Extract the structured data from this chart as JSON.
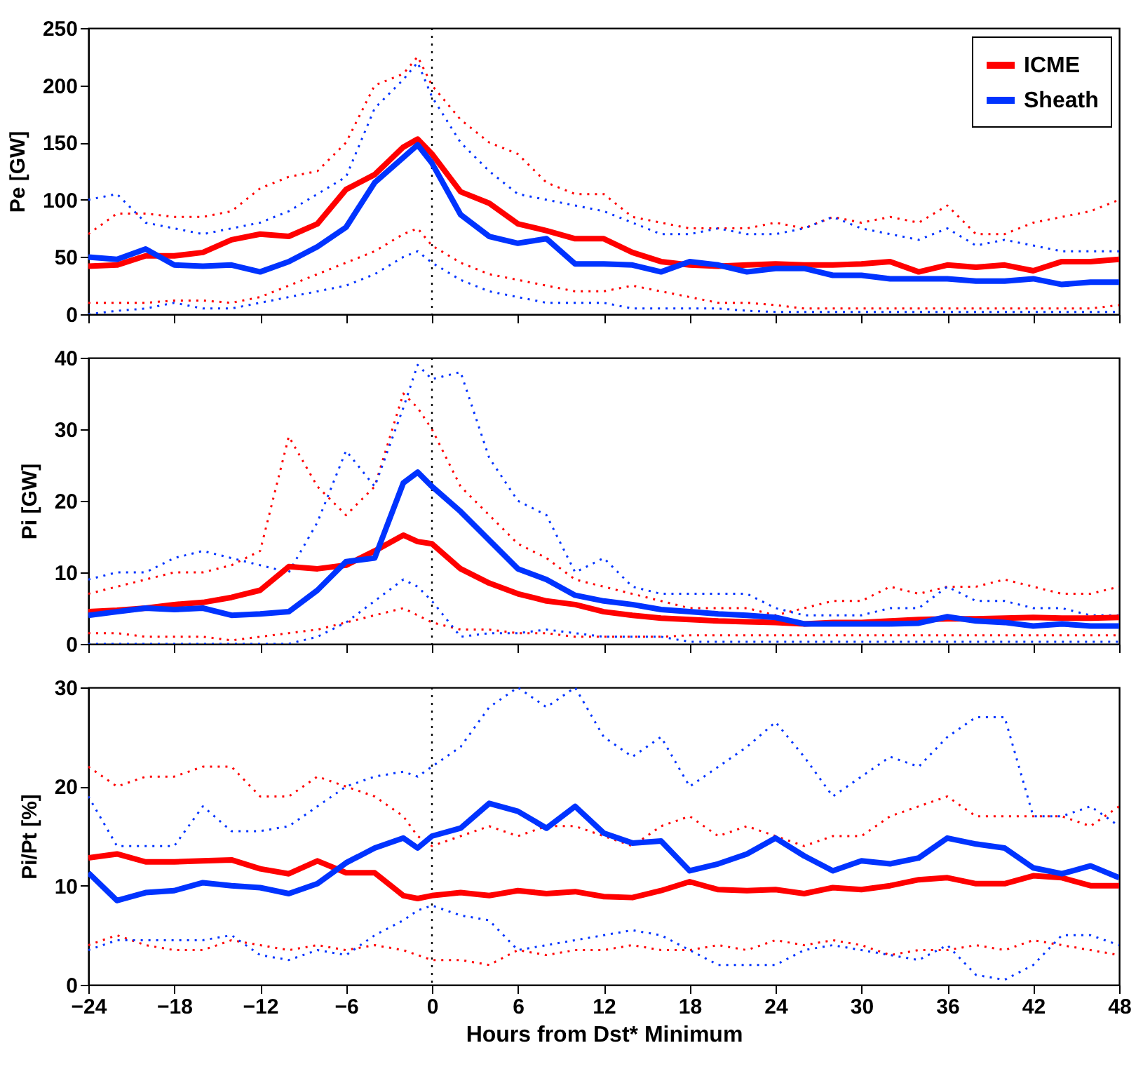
{
  "chart_data": [
    {
      "type": "line",
      "ylabel": "Pe [GW]",
      "x": [
        -24,
        -22,
        -20,
        -18,
        -16,
        -14,
        -12,
        -10,
        -8,
        -6,
        -4,
        -2,
        -1,
        0,
        2,
        4,
        6,
        8,
        10,
        12,
        14,
        16,
        18,
        20,
        22,
        24,
        26,
        28,
        30,
        32,
        34,
        36,
        38,
        40,
        42,
        44,
        46,
        48
      ],
      "xlim": [
        -24,
        48
      ],
      "xticks": [
        -24,
        -18,
        -12,
        -6,
        0,
        6,
        12,
        18,
        24,
        30,
        36,
        42,
        48
      ],
      "ylim": [
        0,
        250
      ],
      "yticks": [
        0,
        50,
        100,
        150,
        200,
        250
      ],
      "tick_labels": "y",
      "grid": false,
      "legend": "top right",
      "ref_lines": [
        {
          "axis": "x",
          "value": 0,
          "color": "#000000",
          "line_style": "dotted"
        }
      ],
      "series": [
        {
          "color": "#ff0000",
          "line_style": "dotted",
          "values": [
            70,
            88,
            88,
            85,
            85,
            90,
            110,
            120,
            125,
            150,
            200,
            210,
            225,
            200,
            170,
            150,
            140,
            115,
            105,
            105,
            85,
            80,
            75,
            75,
            75,
            80,
            75,
            85,
            80,
            85,
            80,
            95,
            70,
            70,
            80,
            85,
            90,
            100
          ]
        },
        {
          "color": "#ff0000",
          "line_style": "dotted",
          "values": [
            10,
            10,
            10,
            12,
            12,
            10,
            15,
            25,
            35,
            45,
            55,
            70,
            75,
            60,
            45,
            35,
            30,
            25,
            20,
            20,
            25,
            20,
            15,
            10,
            10,
            8,
            5,
            5,
            5,
            5,
            5,
            5,
            5,
            5,
            5,
            5,
            5,
            8
          ]
        },
        {
          "color": "#0033ff",
          "line_style": "dotted",
          "values": [
            100,
            105,
            80,
            75,
            70,
            75,
            80,
            90,
            105,
            120,
            180,
            205,
            220,
            190,
            150,
            125,
            105,
            100,
            95,
            90,
            80,
            70,
            70,
            75,
            70,
            70,
            75,
            85,
            75,
            70,
            65,
            75,
            60,
            65,
            60,
            55,
            55,
            55
          ]
        },
        {
          "color": "#0033ff",
          "line_style": "dotted",
          "values": [
            0,
            3,
            5,
            10,
            5,
            5,
            10,
            15,
            20,
            25,
            35,
            50,
            55,
            45,
            30,
            20,
            15,
            10,
            10,
            10,
            5,
            5,
            5,
            5,
            3,
            2,
            2,
            2,
            2,
            2,
            2,
            2,
            2,
            2,
            2,
            2,
            2,
            2
          ]
        },
        {
          "name": "ICME",
          "color": "#ff0000",
          "line_style": "solid",
          "values": [
            42,
            43,
            51,
            51,
            54,
            65,
            70,
            68,
            79,
            109,
            122,
            146,
            153,
            140,
            107,
            97,
            79,
            73,
            66,
            66,
            54,
            46,
            43,
            42,
            43,
            44,
            43,
            43,
            44,
            46,
            37,
            43,
            41,
            43,
            38,
            46,
            46,
            48
          ]
        },
        {
          "name": "Sheath",
          "color": "#0033ff",
          "line_style": "solid",
          "values": [
            50,
            48,
            57,
            43,
            42,
            43,
            37,
            46,
            59,
            76,
            115,
            137,
            148,
            132,
            87,
            68,
            62,
            66,
            44,
            44,
            43,
            37,
            46,
            43,
            37,
            40,
            40,
            34,
            34,
            31,
            31,
            31,
            29,
            29,
            31,
            26,
            28,
            28
          ]
        }
      ]
    },
    {
      "type": "line",
      "ylabel": "Pi [GW]",
      "x": [
        -24,
        -22,
        -20,
        -18,
        -16,
        -14,
        -12,
        -10,
        -8,
        -6,
        -4,
        -2,
        -1,
        0,
        2,
        4,
        6,
        8,
        10,
        12,
        14,
        16,
        18,
        20,
        22,
        24,
        26,
        28,
        30,
        32,
        34,
        36,
        38,
        40,
        42,
        44,
        46,
        48
      ],
      "xlim": [
        -24,
        48
      ],
      "xticks": [
        -24,
        -18,
        -12,
        -6,
        0,
        6,
        12,
        18,
        24,
        30,
        36,
        42,
        48
      ],
      "ylim": [
        0,
        40
      ],
      "yticks": [
        0,
        10,
        20,
        30,
        40
      ],
      "tick_labels": "y",
      "grid": false,
      "ref_lines": [
        {
          "axis": "x",
          "value": 0,
          "color": "#000000",
          "line_style": "dotted"
        }
      ],
      "series": [
        {
          "color": "#ff0000",
          "line_style": "dotted",
          "values": [
            7,
            8,
            9,
            10,
            10,
            11,
            13,
            29,
            22,
            18,
            22,
            35,
            33,
            30,
            22,
            18,
            14,
            12,
            9,
            8,
            7,
            6,
            5,
            5,
            5,
            4,
            5,
            6,
            6,
            8,
            7,
            8,
            8,
            9,
            8,
            7,
            7,
            8
          ]
        },
        {
          "color": "#ff0000",
          "line_style": "dotted",
          "values": [
            1.5,
            1.5,
            1,
            1,
            1,
            0.5,
            1,
            1.5,
            2,
            3,
            4,
            5,
            4,
            3,
            2,
            2,
            1.5,
            1.5,
            1,
            1,
            1,
            1,
            1.2,
            1.2,
            1.2,
            1.2,
            1.2,
            1.2,
            1.2,
            1.2,
            1.2,
            1.2,
            1.2,
            1.2,
            1.2,
            1.2,
            1.2,
            1.2
          ]
        },
        {
          "color": "#0033ff",
          "line_style": "dotted",
          "values": [
            9,
            10,
            10,
            12,
            13,
            12,
            11,
            10,
            17,
            27,
            22,
            33,
            39,
            37,
            38,
            26,
            20,
            18,
            10,
            12,
            8,
            7,
            7,
            7,
            7,
            5,
            4,
            4,
            4,
            5,
            5,
            8,
            6,
            6,
            5,
            5,
            4,
            4
          ]
        },
        {
          "color": "#0033ff",
          "line_style": "dotted",
          "values": [
            0,
            0,
            0,
            0,
            0,
            0,
            0,
            0,
            1,
            3,
            6,
            9,
            8,
            6,
            1,
            1.5,
            1.5,
            2,
            1.5,
            1,
            1,
            1,
            0.3,
            0.3,
            0.3,
            0.3,
            0.3,
            0.3,
            0.3,
            0.3,
            0.3,
            0.3,
            0.3,
            0.3,
            0.3,
            0.3,
            0.3,
            0.3
          ]
        },
        {
          "color": "#ff0000",
          "line_style": "solid",
          "values": [
            4.5,
            4.7,
            5,
            5.5,
            5.8,
            6.5,
            7.5,
            10.8,
            10.5,
            11,
            13,
            15.2,
            14.3,
            14,
            10.5,
            8.5,
            7,
            6,
            5.5,
            4.5,
            4,
            3.6,
            3.4,
            3.2,
            3.1,
            3.0,
            2.8,
            3,
            3,
            3.2,
            3.4,
            3.5,
            3.5,
            3.6,
            3.7,
            3.6,
            3.6,
            3.7
          ]
        },
        {
          "color": "#0033ff",
          "line_style": "solid",
          "values": [
            4,
            4.5,
            5,
            4.8,
            5,
            4,
            4.2,
            4.5,
            7.5,
            11.5,
            12,
            22.5,
            24,
            22,
            18.5,
            14.5,
            10.5,
            9,
            6.8,
            6,
            5.5,
            4.8,
            4.5,
            4.2,
            4,
            3.7,
            2.8,
            2.8,
            2.8,
            2.8,
            2.9,
            3.8,
            3.2,
            3,
            2.5,
            2.8,
            2.5,
            2.5
          ]
        }
      ]
    },
    {
      "type": "line",
      "ylabel": "Pi/Pt [%]",
      "xlabel": "Hours from Dst* Minimum",
      "x": [
        -24,
        -22,
        -20,
        -18,
        -16,
        -14,
        -12,
        -10,
        -8,
        -6,
        -4,
        -2,
        -1,
        0,
        2,
        4,
        6,
        8,
        10,
        12,
        14,
        16,
        18,
        20,
        22,
        24,
        26,
        28,
        30,
        32,
        34,
        36,
        38,
        40,
        42,
        44,
        46,
        48
      ],
      "xlim": [
        -24,
        48
      ],
      "xticks": [
        {
          "value": -24,
          "label": "−24"
        },
        {
          "value": -18,
          "label": "−18"
        },
        {
          "value": -12,
          "label": "−12"
        },
        {
          "value": -6,
          "label": "−6"
        },
        0,
        6,
        12,
        18,
        24,
        30,
        36,
        42,
        48
      ],
      "ylim": [
        0,
        30
      ],
      "yticks": [
        0,
        10,
        20,
        30
      ],
      "grid": false,
      "ref_lines": [
        {
          "axis": "x",
          "value": 0,
          "color": "#000000",
          "line_style": "dotted"
        }
      ],
      "series": [
        {
          "color": "#ff0000",
          "line_style": "dotted",
          "values": [
            22,
            20,
            21,
            21,
            22,
            22,
            19,
            19,
            21,
            20,
            19,
            17,
            15,
            14,
            15,
            16,
            15,
            16,
            16,
            15,
            14,
            16,
            17,
            15,
            16,
            15,
            14,
            15,
            15,
            17,
            18,
            19,
            17,
            17,
            17,
            17,
            16,
            18
          ]
        },
        {
          "color": "#ff0000",
          "line_style": "dotted",
          "values": [
            4,
            5,
            4,
            3.5,
            3.5,
            4.5,
            4,
            3.5,
            4,
            3.5,
            4,
            3.5,
            3,
            2.5,
            2.5,
            2,
            3.5,
            3,
            3.5,
            3.5,
            4,
            3.5,
            3.5,
            4,
            3.5,
            4.5,
            4,
            4.5,
            4,
            3,
            3.5,
            3.5,
            4,
            3.5,
            4.5,
            4,
            3.5,
            3
          ]
        },
        {
          "color": "#0033ff",
          "line_style": "dotted",
          "values": [
            19,
            14,
            14,
            14,
            18,
            15.5,
            15.5,
            16,
            18,
            20,
            21,
            21.5,
            21,
            22,
            24,
            28,
            30,
            28,
            30,
            25,
            23,
            25,
            20,
            22,
            24,
            26.5,
            23,
            19,
            21,
            23,
            22,
            25,
            27,
            27,
            17,
            17,
            18,
            16
          ]
        },
        {
          "color": "#0033ff",
          "line_style": "dotted",
          "values": [
            3.5,
            4.5,
            4.5,
            4.5,
            4.5,
            5,
            3,
            2.5,
            3.5,
            3,
            5,
            6.5,
            7.5,
            8,
            7,
            6.5,
            3.5,
            4,
            4.5,
            5,
            5.5,
            5,
            3.5,
            2,
            2,
            2,
            3.5,
            4,
            3.5,
            3,
            2.5,
            4,
            1,
            0.5,
            2,
            5,
            5,
            4
          ]
        },
        {
          "color": "#ff0000",
          "line_style": "solid",
          "values": [
            12.8,
            13.2,
            12.4,
            12.4,
            12.5,
            12.6,
            11.7,
            11.2,
            12.5,
            11.3,
            11.3,
            9,
            8.7,
            9,
            9.3,
            9,
            9.5,
            9.2,
            9.4,
            8.9,
            8.8,
            9.5,
            10.4,
            9.6,
            9.5,
            9.6,
            9.2,
            9.8,
            9.6,
            10,
            10.6,
            10.8,
            10.2,
            10.2,
            11,
            10.8,
            10,
            10
          ]
        },
        {
          "color": "#0033ff",
          "line_style": "solid",
          "values": [
            11.3,
            8.5,
            9.3,
            9.5,
            10.3,
            10,
            9.8,
            9.2,
            10.2,
            12.3,
            13.8,
            14.8,
            13.8,
            15,
            15.8,
            18.3,
            17.5,
            15.8,
            18,
            15.3,
            14.3,
            14.5,
            11.5,
            12.2,
            13.2,
            14.8,
            13,
            11.5,
            12.5,
            12.2,
            12.8,
            14.8,
            14.2,
            13.8,
            11.8,
            11.2,
            12,
            10.8
          ]
        }
      ]
    }
  ]
}
